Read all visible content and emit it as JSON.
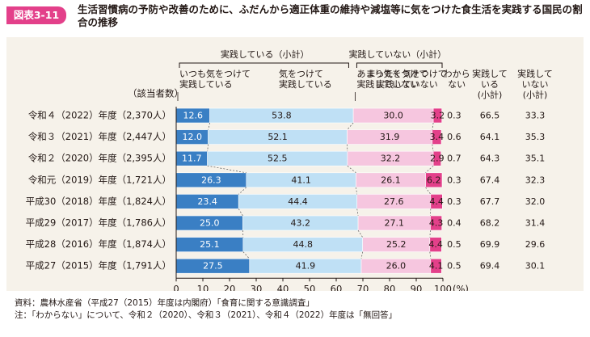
{
  "header": {
    "badge": "図表3-11",
    "title": "生活習慣病の予防や改善のために、ふだんから適正体重の維持や減塩等に気をつけた食生活を実践する国民の割合の推移"
  },
  "footer": {
    "source": "資料：農林水産省（平成27（2015）年度は内閣府）「食育に関する意識調査」",
    "note": "注：「わからない」について、令和２（2020）、令和３（2021）、令和４（2022）年度は「無回答」"
  },
  "colors": {
    "always": "#3a7fc4",
    "careful": "#bfe0f5",
    "not_much": "#f6c6df",
    "not_at_all": "#e3408a",
    "badge": "#e3408a",
    "panel": "#f6f2ea"
  },
  "chart_data": {
    "type": "bar",
    "orientation": "horizontal",
    "stacked": true,
    "title": "生活習慣病の予防や改善のために、ふだんから適正体重の維持や減塩等に気をつけた食生活を実践する国民の割合の推移",
    "respondents_label": "（該当者数）",
    "categories": [
      "令和４（2022）年度（2,370人）",
      "令和３（2021）年度（2,447人）",
      "令和２（2020）年度（2,395人）",
      "令和元（2019）年度（1,721人）",
      "平成30（2018）年度（1,824人）",
      "平成29（2017）年度（1,786人）",
      "平成28（2016）年度（1,874人）",
      "平成27（2015）年度（1,791人）"
    ],
    "series": [
      {
        "name": "いつも気をつけて実践している",
        "values": [
          "12.6",
          "12.0",
          "11.7",
          "26.3",
          "23.4",
          "25.0",
          "25.1",
          "27.5"
        ]
      },
      {
        "name": "気をつけて実践している",
        "values": [
          "53.8",
          "52.1",
          "52.5",
          "41.1",
          "44.4",
          "43.2",
          "44.8",
          "41.9"
        ]
      },
      {
        "name": "あまり気をつけて実践していない",
        "values": [
          "30.0",
          "31.9",
          "32.2",
          "26.1",
          "27.6",
          "27.1",
          "25.2",
          "26.0"
        ]
      },
      {
        "name": "まったく気をつけて実践していない",
        "values": [
          "3.2",
          "3.4",
          "2.9",
          "6.2",
          "4.4",
          "4.3",
          "4.4",
          "4.1"
        ]
      },
      {
        "name": "わからない",
        "values": [
          "0.3",
          "0.6",
          "0.7",
          "0.3",
          "0.3",
          "0.4",
          "0.5",
          "0.5"
        ]
      }
    ],
    "subtotal_practicing": {
      "label": "実践している（小計）",
      "values": [
        "66.5",
        "64.1",
        "64.3",
        "67.4",
        "67.7",
        "68.2",
        "69.9",
        "69.4"
      ]
    },
    "subtotal_not_practicing": {
      "label": "実践していない（小計）",
      "values": [
        "33.3",
        "35.3",
        "35.1",
        "32.3",
        "32.0",
        "31.4",
        "29.6",
        "30.1"
      ]
    },
    "group_labels": [
      "実践している（小計）",
      "実践していない（小計）"
    ],
    "column_headers": {
      "s0": [
        "いつも気をつけて",
        "実践している"
      ],
      "s1": [
        "気をつけて",
        "実践している"
      ],
      "s2": [
        "あまり気をつけて",
        "実践していない"
      ],
      "s3": [
        "まったく気をつけて",
        "実践していない"
      ],
      "s4": [
        "わから",
        "ない"
      ],
      "sub1": [
        "実践して",
        "いる",
        "(小計)"
      ],
      "sub2": [
        "実践して",
        "いない",
        "(小計)"
      ]
    },
    "x_ticks": [
      "0",
      "10",
      "20",
      "30",
      "40",
      "50",
      "60",
      "70",
      "80",
      "90",
      "100"
    ],
    "x_unit": "(%)",
    "xlim": [
      0,
      100
    ]
  }
}
